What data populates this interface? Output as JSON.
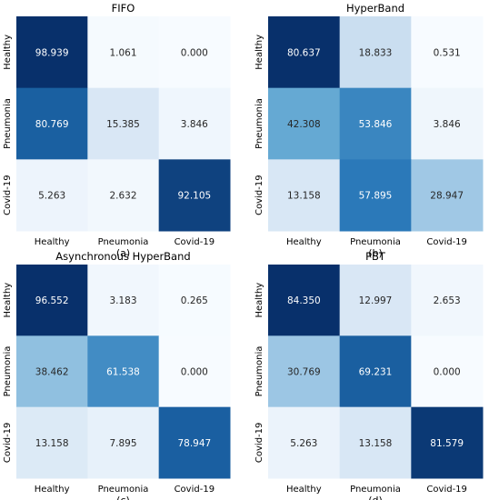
{
  "chart_data": [
    {
      "type": "heatmap",
      "title": "FIFO",
      "subtitle": "(a)",
      "rows": [
        "Healthy",
        "Pneumonia",
        "Covid-19"
      ],
      "columns": [
        "Healthy",
        "Pneumonia",
        "Covid-19"
      ],
      "values": [
        [
          "98.939",
          "1.061",
          "0.000"
        ],
        [
          "80.769",
          "15.385",
          "3.846"
        ],
        [
          "5.263",
          "2.632",
          "92.105"
        ]
      ]
    },
    {
      "type": "heatmap",
      "title": "HyperBand",
      "subtitle": "(b)",
      "rows": [
        "Healthy",
        "Pneumonia",
        "Covid-19"
      ],
      "columns": [
        "Healthy",
        "Pneumonia",
        "Covid-19"
      ],
      "values": [
        [
          "80.637",
          "18.833",
          "0.531"
        ],
        [
          "42.308",
          "53.846",
          "3.846"
        ],
        [
          "13.158",
          "57.895",
          "28.947"
        ]
      ]
    },
    {
      "type": "heatmap",
      "title": "Asynchronous HyperBand",
      "subtitle": "(c)",
      "rows": [
        "Healthy",
        "Pneumonia",
        "Covid-19"
      ],
      "columns": [
        "Healthy",
        "Pneumonia",
        "Covid-19"
      ],
      "values": [
        [
          "96.552",
          "3.183",
          "0.265"
        ],
        [
          "38.462",
          "61.538",
          "0.000"
        ],
        [
          "13.158",
          "7.895",
          "78.947"
        ]
      ]
    },
    {
      "type": "heatmap",
      "title": "PBT",
      "subtitle": "(d)",
      "rows": [
        "Healthy",
        "Pneumonia",
        "Covid-19"
      ],
      "columns": [
        "Healthy",
        "Pneumonia",
        "Covid-19"
      ],
      "values": [
        [
          "84.350",
          "12.997",
          "2.653"
        ],
        [
          "30.769",
          "69.231",
          "0.000"
        ],
        [
          "5.263",
          "13.158",
          "81.579"
        ]
      ]
    }
  ],
  "colors": {
    "scale_low": "#f7fbff",
    "scale_mid_low": "#c6dbef",
    "scale_mid": "#6baed6",
    "scale_mid_high": "#2171b5",
    "scale_high": "#08306b",
    "text_dark": "#262626",
    "text_light": "#ffffff"
  }
}
